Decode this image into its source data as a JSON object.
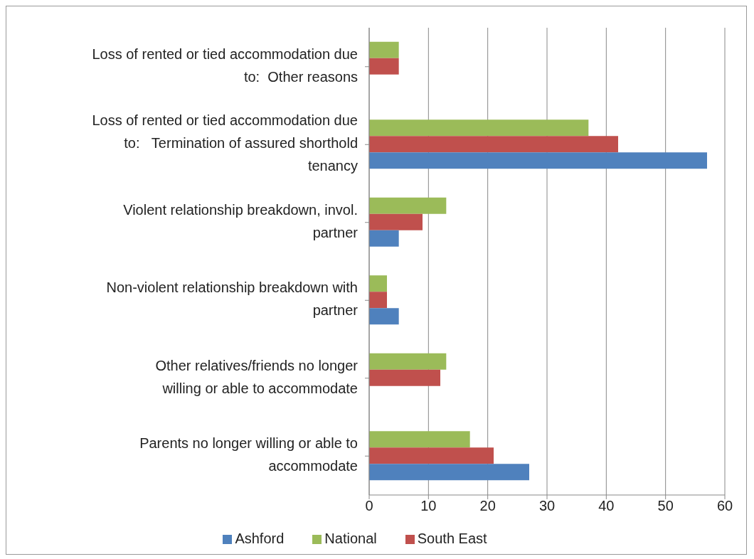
{
  "chart_data": {
    "type": "bar",
    "orientation": "horizontal",
    "categories": [
      "Loss of rented or tied accommodation due to:  Other reasons",
      "Loss of rented or tied accommodation due to:   Termination of assured shorthold tenancy",
      "Violent relationship breakdown, invol. partner",
      "Non-violent relationship breakdown with partner",
      "Other relatives/friends no longer willing or able to accommodate",
      "Parents no longer willing or able to accommodate"
    ],
    "series": [
      {
        "name": "National",
        "color": "#9bbb59",
        "values": [
          5,
          37,
          13,
          3,
          13,
          17
        ]
      },
      {
        "name": "South East",
        "color": "#c0504d",
        "values": [
          5,
          42,
          9,
          3,
          12,
          21
        ]
      },
      {
        "name": "Ashford",
        "color": "#4f81bd",
        "values": [
          null,
          57,
          5,
          5,
          null,
          27
        ]
      }
    ],
    "xlim": [
      0,
      60
    ],
    "xticks": [
      0,
      10,
      20,
      30,
      40,
      50,
      60
    ],
    "grid": "x",
    "legend": "bottom"
  }
}
